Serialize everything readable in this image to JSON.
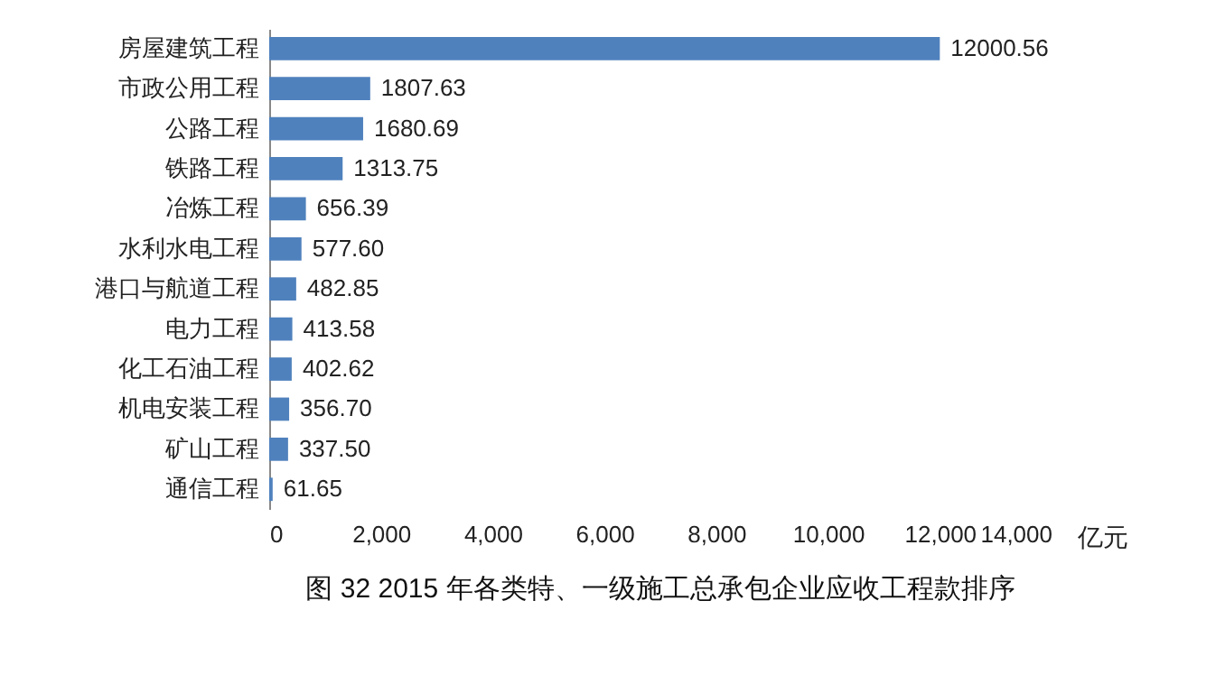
{
  "chart_data": {
    "type": "bar",
    "orientation": "horizontal",
    "title": "图 32 2015 年各类特、一级施工总承包企业应收工程款排序",
    "xlabel": "亿元",
    "categories": [
      "房屋建筑工程",
      "市政公用工程",
      "公路工程",
      "铁路工程",
      "冶炼工程",
      "水利水电工程",
      "港口与航道工程",
      "电力工程",
      "化工石油工程",
      "机电安装工程",
      "矿山工程",
      "通信工程"
    ],
    "values": [
      12000.56,
      1807.63,
      1680.69,
      1313.75,
      656.39,
      577.6,
      482.85,
      413.58,
      402.62,
      356.7,
      337.5,
      61.65
    ],
    "value_labels": [
      "12000.56",
      "1807.63",
      "1680.69",
      "1313.75",
      "656.39",
      "577.60",
      "482.85",
      "413.58",
      "402.62",
      "356.70",
      "337.50",
      "61.65"
    ],
    "color": "#4f81bd",
    "xlim": [
      0,
      14000
    ],
    "xticks": [
      0,
      {
        "value": 2000,
        "label": "2,000"
      },
      {
        "value": 4000,
        "label": "4,000"
      },
      {
        "value": 6000,
        "label": "6,000"
      },
      {
        "value": 8000,
        "label": "8,000"
      },
      {
        "value": 10000,
        "label": "10,000"
      },
      {
        "value": 12000,
        "label": "12,000"
      },
      {
        "value": 14000,
        "label": "14,000"
      }
    ]
  }
}
